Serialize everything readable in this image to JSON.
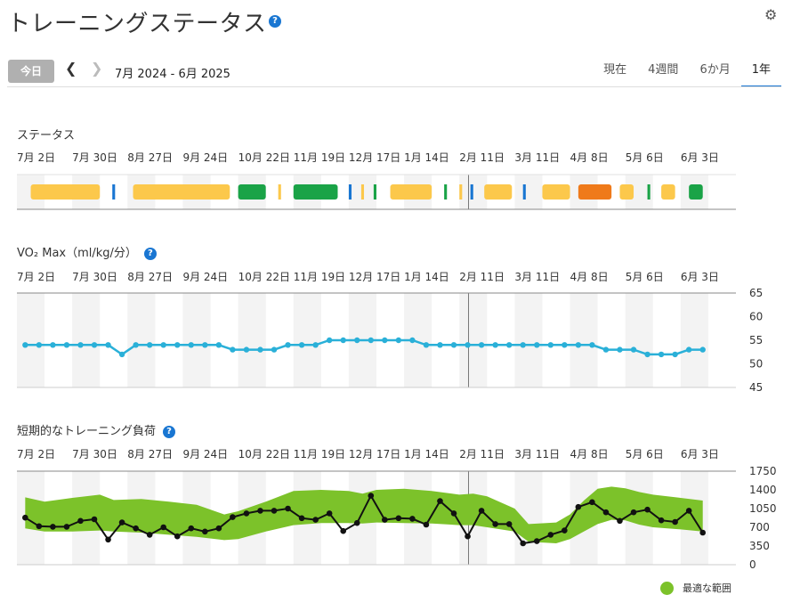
{
  "header": {
    "title": "トレーニングステータス",
    "help": "?",
    "settings_icon": "gear-icon"
  },
  "toolbar": {
    "today_label": "今日",
    "prev_icon": "chevron-left-icon",
    "next_icon": "chevron-right-icon",
    "date_range": "7月 2024 - 6月 2025"
  },
  "tabs": [
    {
      "label": "現在",
      "active": false
    },
    {
      "label": "4週間",
      "active": false
    },
    {
      "label": "6か月",
      "active": false
    },
    {
      "label": "1年",
      "active": true
    }
  ],
  "colors": {
    "accent": "#1976d2",
    "vo2_line": "#2ab0d8",
    "load_band": "#7cc22a",
    "load_line": "#111111",
    "productive": "#fcc84b",
    "peaking": "#1aa347",
    "overreaching": "#ef7a1a",
    "recovery": "#1976d2"
  },
  "chart_data": [
    {
      "type": "bar",
      "title": "ステータス",
      "week_labels": [
        "7月 2日",
        "7月 30日",
        "8月 27日",
        "9月 24日",
        "10月 22日",
        "11月 19日",
        "12月 17日",
        "1月 14日",
        "2月 11日",
        "3月 11日",
        "4月 8日",
        "5月 6日",
        "6月 3日"
      ],
      "segments": [
        {
          "start": 0.5,
          "end": 3.0,
          "status": "productive"
        },
        {
          "start": 3.45,
          "end": 3.55,
          "status": "recovery"
        },
        {
          "start": 4.2,
          "end": 7.7,
          "status": "productive"
        },
        {
          "start": 8.0,
          "end": 9.0,
          "status": "peaking"
        },
        {
          "start": 9.45,
          "end": 9.55,
          "status": "productive"
        },
        {
          "start": 10.0,
          "end": 11.6,
          "status": "peaking"
        },
        {
          "start": 12.0,
          "end": 12.1,
          "status": "recovery"
        },
        {
          "start": 12.45,
          "end": 12.55,
          "status": "productive"
        },
        {
          "start": 12.9,
          "end": 13.0,
          "status": "peaking"
        },
        {
          "start": 13.5,
          "end": 15.0,
          "status": "productive"
        },
        {
          "start": 15.45,
          "end": 15.55,
          "status": "peaking"
        },
        {
          "start": 16.0,
          "end": 16.1,
          "status": "productive"
        },
        {
          "start": 16.4,
          "end": 16.5,
          "status": "recovery"
        },
        {
          "start": 16.9,
          "end": 17.9,
          "status": "productive"
        },
        {
          "start": 18.3,
          "end": 18.4,
          "status": "recovery"
        },
        {
          "start": 19.0,
          "end": 20.0,
          "status": "productive"
        },
        {
          "start": 20.3,
          "end": 21.5,
          "status": "overreaching"
        },
        {
          "start": 21.8,
          "end": 22.3,
          "status": "productive"
        },
        {
          "start": 22.8,
          "end": 22.9,
          "status": "peaking"
        },
        {
          "start": 23.3,
          "end": 23.8,
          "status": "productive"
        },
        {
          "start": 24.3,
          "end": 24.8,
          "status": "peaking"
        }
      ]
    },
    {
      "type": "line",
      "title": "VO₂ Max（ml/kg/分）",
      "help": "?",
      "week_labels": [
        "7月 2日",
        "7月 30日",
        "8月 27日",
        "9月 24日",
        "10月 22日",
        "11月 19日",
        "12月 17日",
        "1月 14日",
        "2月 11日",
        "3月 11日",
        "4月 8日",
        "5月 6日",
        "6月 3日"
      ],
      "ylim": [
        45,
        65
      ],
      "yticks": [
        65,
        60,
        55,
        50,
        45
      ],
      "x_weeks": [
        0.3,
        0.8,
        1.3,
        1.8,
        2.3,
        2.8,
        3.3,
        3.8,
        4.3,
        4.8,
        5.3,
        5.8,
        6.3,
        6.8,
        7.3,
        7.8,
        8.3,
        8.8,
        9.3,
        9.8,
        10.3,
        10.8,
        11.3,
        11.8,
        12.3,
        12.8,
        13.3,
        13.8,
        14.3,
        14.8,
        15.3,
        15.8,
        16.3,
        16.8,
        17.3,
        17.8,
        18.3,
        18.8,
        19.3,
        19.8,
        20.3,
        20.8,
        21.3,
        21.8,
        22.3,
        22.8,
        23.3,
        23.8,
        24.3,
        24.8
      ],
      "values": [
        54,
        54,
        54,
        54,
        54,
        54,
        54,
        52,
        54,
        54,
        54,
        54,
        54,
        54,
        54,
        53,
        53,
        53,
        53,
        54,
        54,
        54,
        55,
        55,
        55,
        55,
        55,
        55,
        55,
        54,
        54,
        54,
        54,
        54,
        54,
        54,
        54,
        54,
        54,
        54,
        54,
        54,
        53,
        53,
        53,
        52,
        52,
        52,
        53,
        53
      ]
    },
    {
      "type": "area",
      "title": "短期的なトレーニング負荷",
      "help": "?",
      "legend": "最適な範囲",
      "legend_position": "bottom-right",
      "week_labels": [
        "7月 2日",
        "7月 30日",
        "8月 27日",
        "9月 24日",
        "10月 22日",
        "11月 19日",
        "12月 17日",
        "1月 14日",
        "2月 11日",
        "3月 11日",
        "4月 8日",
        "5月 6日",
        "6月 3日"
      ],
      "ylim": [
        0,
        1750
      ],
      "yticks": [
        1750,
        1400,
        1050,
        700,
        350,
        0
      ],
      "band_x_weeks": [
        0.3,
        1.0,
        2.0,
        3.0,
        3.5,
        4.5,
        5.5,
        6.5,
        7.5,
        8.0,
        9.0,
        10.0,
        11.0,
        12.0,
        12.5,
        13.0,
        14.0,
        15.0,
        16.0,
        16.5,
        17.0,
        18.0,
        18.5,
        19.5,
        20.0,
        20.5,
        21.0,
        21.5,
        22.0,
        22.5,
        23.0,
        24.0,
        24.8
      ],
      "band_upper": [
        1260,
        1180,
        1250,
        1310,
        1210,
        1230,
        1180,
        1120,
        940,
        1000,
        1180,
        1380,
        1400,
        1380,
        1330,
        1400,
        1420,
        1380,
        1310,
        1330,
        1280,
        1050,
        760,
        790,
        940,
        1200,
        1420,
        1460,
        1430,
        1360,
        1310,
        1250,
        1200
      ],
      "band_lower": [
        680,
        620,
        620,
        640,
        620,
        600,
        560,
        520,
        460,
        480,
        620,
        740,
        780,
        780,
        770,
        790,
        780,
        770,
        740,
        740,
        700,
        620,
        430,
        400,
        480,
        620,
        760,
        840,
        830,
        750,
        700,
        660,
        620
      ],
      "line_x_weeks": [
        0.3,
        0.8,
        1.3,
        1.8,
        2.3,
        2.8,
        3.3,
        3.8,
        4.3,
        4.8,
        5.3,
        5.8,
        6.3,
        6.8,
        7.3,
        7.8,
        8.3,
        8.8,
        9.3,
        9.8,
        10.3,
        10.8,
        11.3,
        11.8,
        12.3,
        12.8,
        13.3,
        13.8,
        14.3,
        14.8,
        15.3,
        15.8,
        16.3,
        16.8,
        17.3,
        17.8,
        18.3,
        18.8,
        19.3,
        19.8,
        20.3,
        20.8,
        21.3,
        21.8,
        22.3,
        22.8,
        23.3,
        23.8,
        24.3,
        24.8
      ],
      "line_values": [
        880,
        720,
        710,
        710,
        820,
        850,
        470,
        790,
        680,
        560,
        700,
        530,
        680,
        620,
        680,
        890,
        960,
        1010,
        1010,
        1050,
        870,
        840,
        960,
        630,
        780,
        1290,
        840,
        870,
        860,
        750,
        1190,
        960,
        530,
        1010,
        760,
        760,
        400,
        440,
        560,
        640,
        1080,
        1170,
        980,
        820,
        980,
        1030,
        830,
        800,
        1010,
        600
      ]
    }
  ]
}
